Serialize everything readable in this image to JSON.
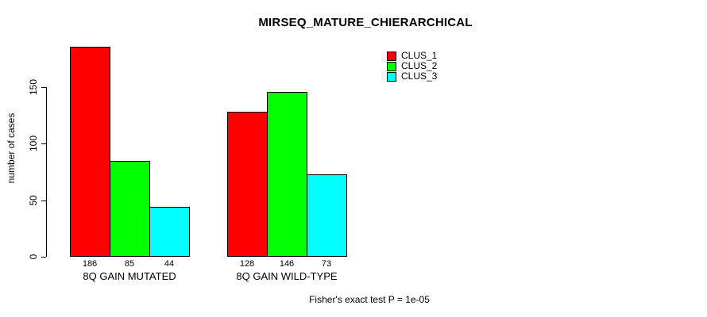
{
  "chart_data": {
    "type": "bar",
    "title": "MIRSEQ_MATURE_CHIERARCHICAL",
    "ylabel": "number of cases",
    "xlabel": "",
    "categories": [
      "8Q GAIN MUTATED",
      "8Q GAIN WILD-TYPE"
    ],
    "series": [
      {
        "name": "CLUS_1",
        "color": "#ff0000",
        "values": [
          186,
          128
        ]
      },
      {
        "name": "CLUS_2",
        "color": "#00ff00",
        "values": [
          85,
          146
        ]
      },
      {
        "name": "CLUS_3",
        "color": "#00ffff",
        "values": [
          44,
          73
        ]
      }
    ],
    "yticks": [
      0,
      50,
      100,
      150
    ],
    "ylim": [
      0,
      150
    ],
    "grid": false,
    "legend_position": "top-right-inside",
    "annotation": "Fisher's exact test P = 1e-05"
  }
}
